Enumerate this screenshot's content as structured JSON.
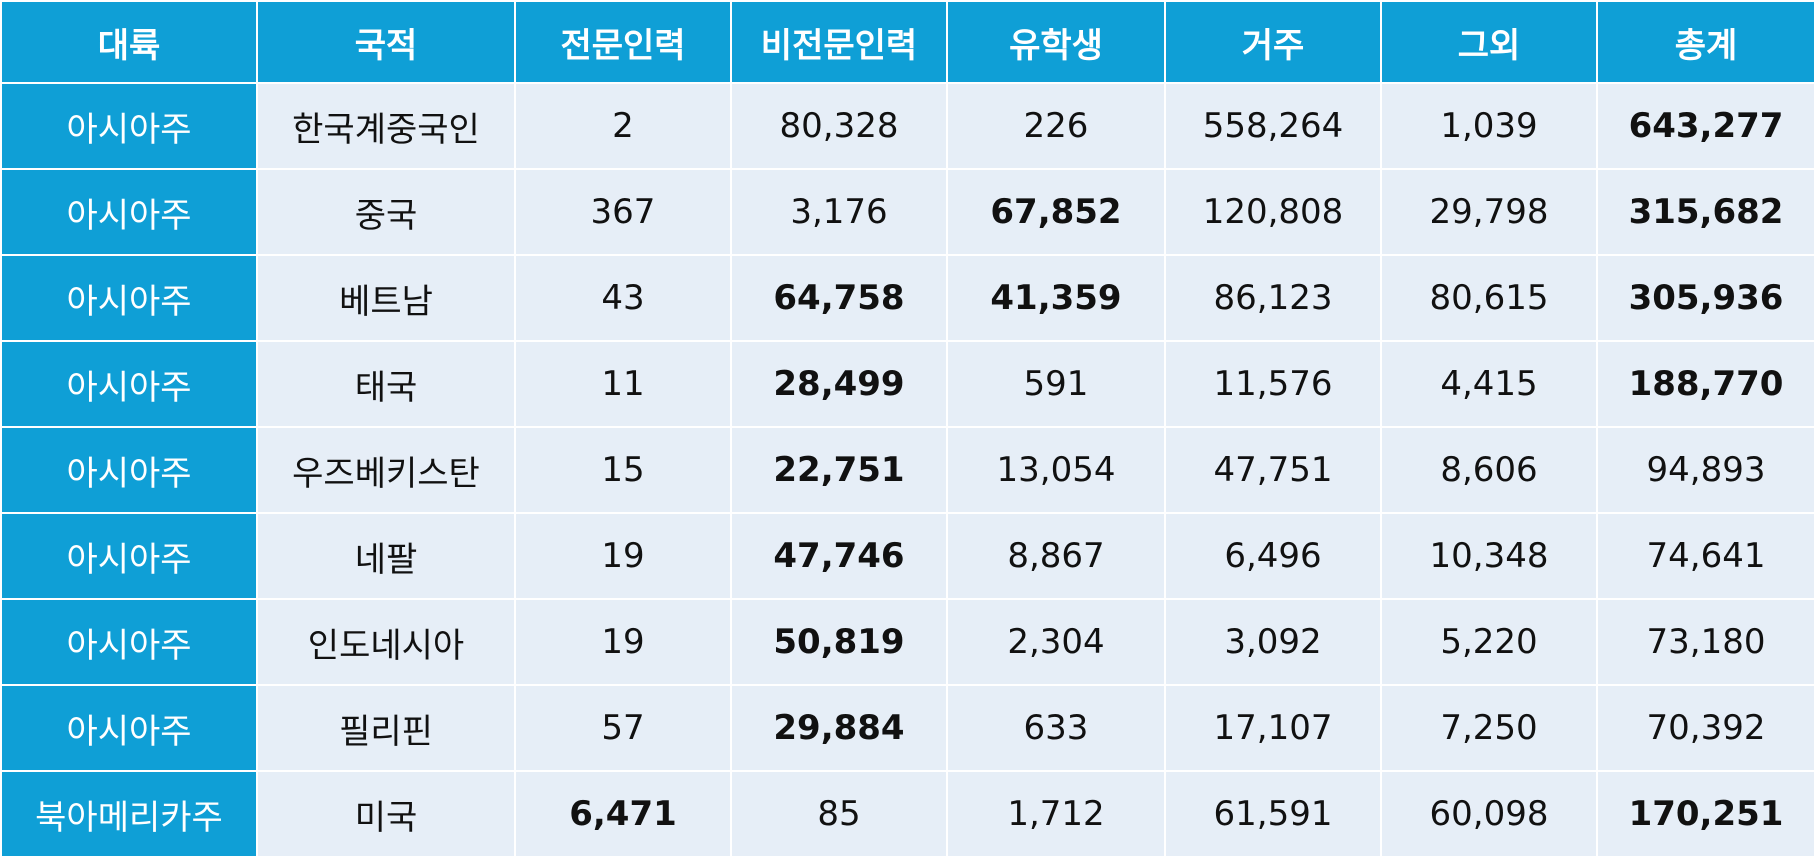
{
  "colors": {
    "header_bg": "#0f9fd6",
    "continent_bg": "#0f9fd6",
    "cell_bg": "#e6eef7"
  },
  "table": {
    "headers": [
      "대륙",
      "국적",
      "전문인력",
      "비전문인력",
      "유학생",
      "거주",
      "그외",
      "총계"
    ],
    "rows": [
      {
        "cells": [
          "아시아주",
          "한국계중국인",
          "2",
          "80,328",
          "226",
          "558,264",
          "1,039",
          "643,277"
        ],
        "bold": [
          7
        ]
      },
      {
        "cells": [
          "아시아주",
          "중국",
          "367",
          "3,176",
          "67,852",
          "120,808",
          "29,798",
          "315,682"
        ],
        "bold": [
          4,
          7
        ]
      },
      {
        "cells": [
          "아시아주",
          "베트남",
          "43",
          "64,758",
          "41,359",
          "86,123",
          "80,615",
          "305,936"
        ],
        "bold": [
          3,
          4,
          7
        ]
      },
      {
        "cells": [
          "아시아주",
          "태국",
          "11",
          "28,499",
          "591",
          "11,576",
          "4,415",
          "188,770"
        ],
        "bold": [
          3,
          7
        ]
      },
      {
        "cells": [
          "아시아주",
          "우즈베키스탄",
          "15",
          "22,751",
          "13,054",
          "47,751",
          "8,606",
          "94,893"
        ],
        "bold": [
          3
        ]
      },
      {
        "cells": [
          "아시아주",
          "네팔",
          "19",
          "47,746",
          "8,867",
          "6,496",
          "10,348",
          "74,641"
        ],
        "bold": [
          3
        ]
      },
      {
        "cells": [
          "아시아주",
          "인도네시아",
          "19",
          "50,819",
          "2,304",
          "3,092",
          "5,220",
          "73,180"
        ],
        "bold": [
          3
        ]
      },
      {
        "cells": [
          "아시아주",
          "필리핀",
          "57",
          "29,884",
          "633",
          "17,107",
          "7,250",
          "70,392"
        ],
        "bold": [
          3
        ]
      },
      {
        "cells": [
          "북아메리카주",
          "미국",
          "6,471",
          "85",
          "1,712",
          "61,591",
          "60,098",
          "170,251"
        ],
        "bold": [
          2,
          7
        ]
      }
    ]
  }
}
